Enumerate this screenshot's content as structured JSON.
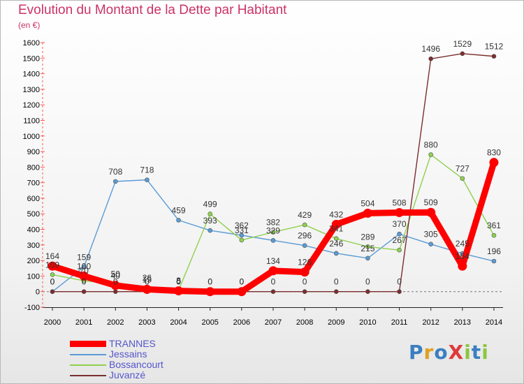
{
  "title": "Evolution du Montant de la Dette par Habitant",
  "unit_label": "(en €)",
  "logo_text": "ProXiti",
  "logo_colors": [
    "#3a7fc1",
    "#e0a020",
    "#3a7fc1",
    "#e03a3a",
    "#8cc63f",
    "#3a7fc1",
    "#8cc63f"
  ],
  "chart_data": {
    "type": "line",
    "x": [
      "2000",
      "2001",
      "2002",
      "2003",
      "2004",
      "2005",
      "2006",
      "2007",
      "2008",
      "2009",
      "2010",
      "2011",
      "2012",
      "2013",
      "2014"
    ],
    "ylim": [
      -100,
      1600
    ],
    "yticks": [
      -100,
      0,
      100,
      200,
      300,
      400,
      500,
      600,
      700,
      800,
      900,
      1000,
      1100,
      1200,
      1300,
      1400,
      1500,
      1600
    ],
    "grid": false,
    "legend_position": "bottom-left",
    "series": [
      {
        "name": "TRANNES",
        "color": "#ff0000",
        "values": [
          164,
          100,
          40,
          15,
          5,
          0,
          0,
          134,
          126,
          432,
          504,
          508,
          509,
          164,
          830
        ]
      },
      {
        "name": "Jessains",
        "color": "#5b9bd5",
        "values": [
          0,
          159,
          708,
          718,
          459,
          393,
          362,
          329,
          296,
          246,
          215,
          370,
          305,
          245,
          196
        ]
      },
      {
        "name": "Bossancourt",
        "color": "#8fd14f",
        "values": [
          109,
          70,
          50,
          26,
          8,
          499,
          331,
          382,
          429,
          341,
          289,
          267,
          880,
          727,
          361
        ]
      },
      {
        "name": "Juvanzé",
        "color": "#7b2d2d",
        "values": [
          0,
          0,
          0,
          0,
          0,
          0,
          0,
          0,
          0,
          0,
          0,
          0,
          1496,
          1529,
          1512
        ]
      }
    ]
  }
}
